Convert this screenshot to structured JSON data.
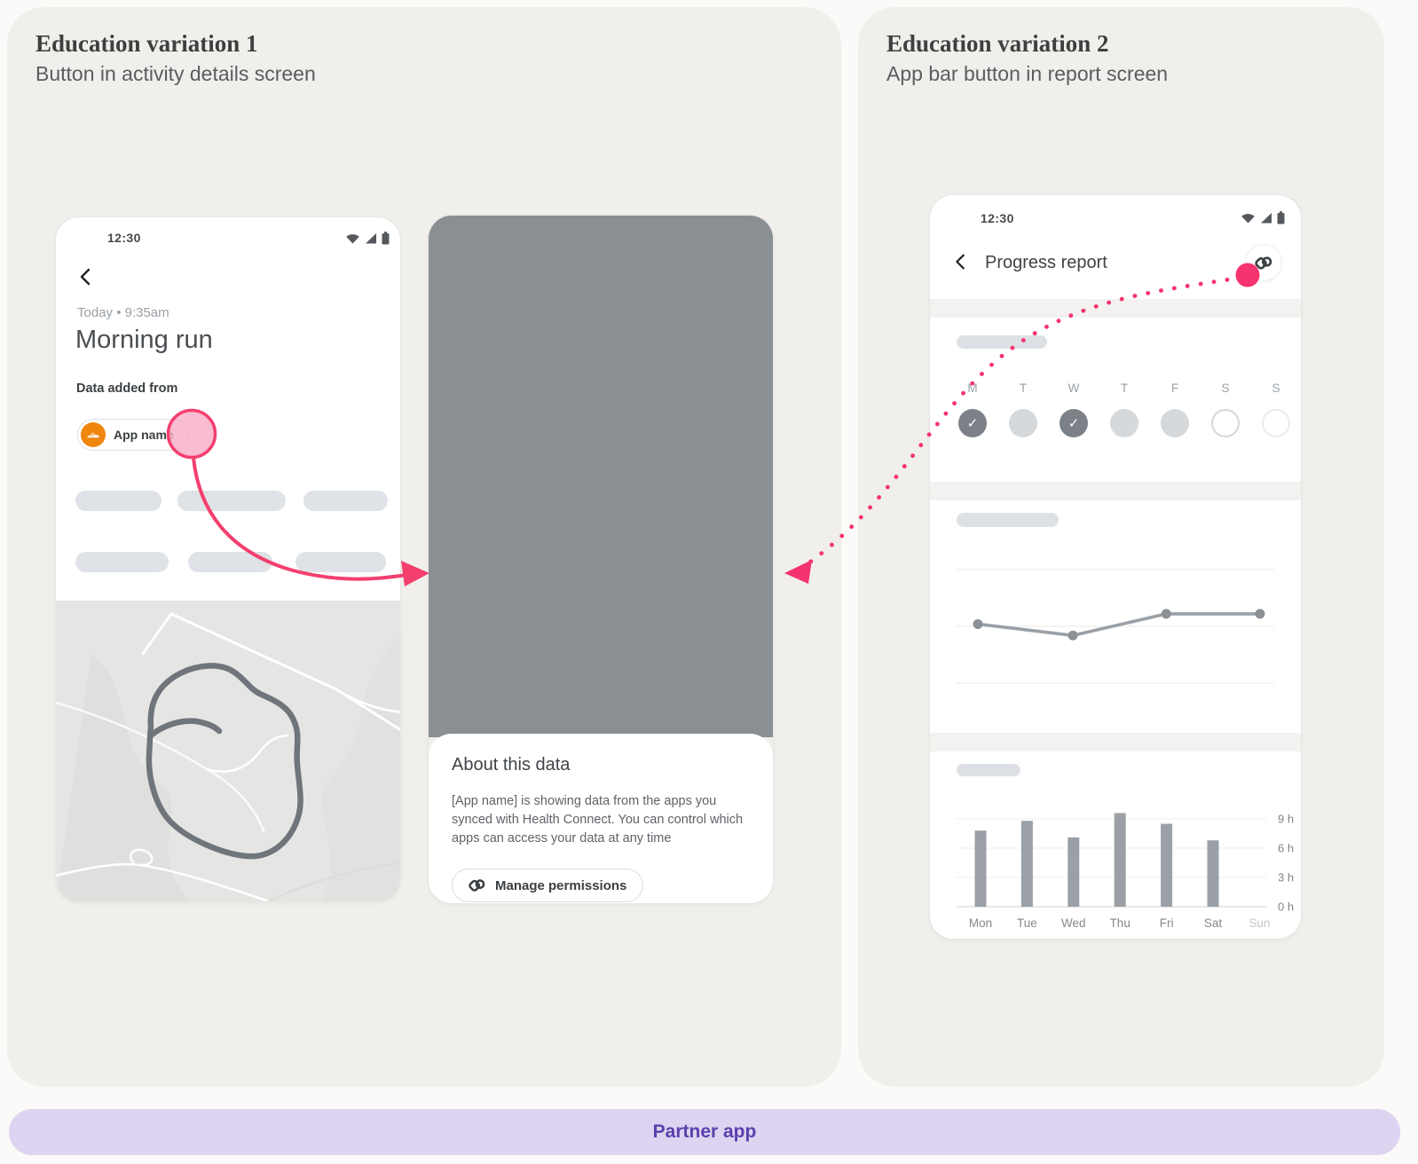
{
  "panels": [
    {
      "title": "Education variation 1",
      "subtitle": "Button in activity details screen"
    },
    {
      "title": "Education variation 2",
      "subtitle": "App bar button in report screen"
    }
  ],
  "partner_bar": {
    "label": "Partner app"
  },
  "colors": {
    "accent_pink": "#F43F6E",
    "purple_bg": "#DCD4F0",
    "purple_text": "#5B3FAE",
    "orange_chip": "#F0860C",
    "modal_scrim": "#8A8F94",
    "bar_grey": "#9AA0A6"
  },
  "phone1": {
    "status_time": "12:30",
    "status_icons": [
      "wifi-icon",
      "cellular-signal-icon",
      "battery-icon"
    ],
    "timestamp": "Today • 9:35am",
    "title": "Morning run",
    "data_added_label": "Data added from",
    "app_chip_label": "App name",
    "app_chip_icon": "running-shoe-icon"
  },
  "phone2": {
    "sheet_title": "About this data",
    "sheet_body": "[App name] is showing data from the apps you synced with Health Connect. You can control which apps can access your data at any time",
    "button_label": "Manage permissions",
    "button_icon": "health-connect-icon"
  },
  "phone3": {
    "status_time": "12:30",
    "app_bar_title": "Progress report",
    "app_bar_action_icon": "health-connect-icon",
    "week": {
      "labels": [
        "M",
        "T",
        "W",
        "T",
        "F",
        "S",
        "S"
      ],
      "states": [
        "checked",
        "filled",
        "checked",
        "filled",
        "filled",
        "outline",
        "outline-faint"
      ]
    }
  },
  "chart_data": [
    {
      "type": "line",
      "description": "Unlabeled trend line in report card (skeleton chart, no axis labels)",
      "x_positions_percent": [
        6.7,
        36.6,
        66,
        95.5
      ],
      "values_percent_of_range": [
        52,
        42,
        61,
        61
      ],
      "gridlines": "3 horizontal light gridlines",
      "legend": "none",
      "line_color": "#9AA0A6"
    },
    {
      "type": "bar",
      "description": "Hours per weekday bar chart",
      "categories": [
        "Mon",
        "Tue",
        "Wed",
        "Thu",
        "Fri",
        "Sat",
        "Sun"
      ],
      "values_hours": [
        7.8,
        8.8,
        7.1,
        9.6,
        8.5,
        6.8,
        0
      ],
      "yticks_hours": [
        9,
        6,
        3,
        0
      ],
      "ytick_labels": [
        "9 h",
        "6 h",
        "3 h",
        "0 h"
      ],
      "ylim": [
        0,
        10.6
      ],
      "bar_color": "#9AA0A6",
      "muted_categories": [
        "Sun"
      ]
    }
  ]
}
